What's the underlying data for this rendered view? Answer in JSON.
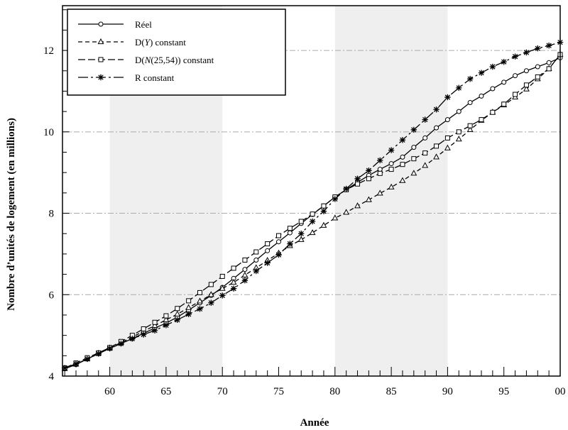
{
  "chart_data": {
    "type": "line",
    "xlabel": "Année",
    "ylabel": "Nombre d’unités de logement (en millions)",
    "xlim": [
      1955.8,
      2000
    ],
    "ylim": [
      4,
      13.1
    ],
    "x_ticks": [
      {
        "value": 1960,
        "label": "60"
      },
      {
        "value": 1965,
        "label": "65"
      },
      {
        "value": 1970,
        "label": "70"
      },
      {
        "value": 1975,
        "label": "75"
      },
      {
        "value": 1980,
        "label": "80"
      },
      {
        "value": 1985,
        "label": "85"
      },
      {
        "value": 1990,
        "label": "90"
      },
      {
        "value": 1995,
        "label": "95"
      },
      {
        "value": 2000,
        "label": "00"
      }
    ],
    "y_ticks": [
      4,
      6,
      8,
      10,
      12
    ],
    "grid": "dash-dot horizontal lines at y ticks",
    "shaded_bands": [
      [
        1960,
        1970
      ],
      [
        1980,
        1990
      ]
    ],
    "legend_position": "top-left",
    "x": [
      1956,
      1957,
      1958,
      1959,
      1960,
      1961,
      1962,
      1963,
      1964,
      1965,
      1966,
      1967,
      1968,
      1969,
      1970,
      1971,
      1972,
      1973,
      1974,
      1975,
      1976,
      1977,
      1978,
      1979,
      1980,
      1981,
      1982,
      1983,
      1984,
      1985,
      1986,
      1987,
      1988,
      1989,
      1990,
      1991,
      1992,
      1993,
      1994,
      1995,
      1996,
      1997,
      1998,
      1999,
      2000
    ],
    "series": [
      {
        "name": "Réel",
        "marker": "circle",
        "dash": "solid",
        "values": [
          4.18,
          4.28,
          4.42,
          4.55,
          4.68,
          4.8,
          4.92,
          5.05,
          5.18,
          5.3,
          5.45,
          5.62,
          5.8,
          5.98,
          6.18,
          6.4,
          6.62,
          6.85,
          7.08,
          7.3,
          7.52,
          7.75,
          7.97,
          8.18,
          8.4,
          8.58,
          8.76,
          8.93,
          9.08,
          9.22,
          9.38,
          9.62,
          9.85,
          10.1,
          10.3,
          10.5,
          10.72,
          10.88,
          11.06,
          11.22,
          11.38,
          11.5,
          11.6,
          11.7,
          11.82
        ]
      },
      {
        "name": "D(Y) constant",
        "name_parts": {
          "pre": "D(",
          "italic": "Y",
          "post": ") constant"
        },
        "marker": "triangle",
        "dash": "6,4",
        "values": [
          4.18,
          4.29,
          4.42,
          4.56,
          4.69,
          4.82,
          4.96,
          5.1,
          5.24,
          5.38,
          5.52,
          5.68,
          5.84,
          6.0,
          6.15,
          6.3,
          6.48,
          6.66,
          6.84,
          7.02,
          7.2,
          7.35,
          7.52,
          7.7,
          7.88,
          8.02,
          8.18,
          8.33,
          8.49,
          8.64,
          8.8,
          8.98,
          9.17,
          9.38,
          9.6,
          9.82,
          10.05,
          10.28,
          10.48,
          10.66,
          10.85,
          11.05,
          11.3,
          11.55,
          11.9
        ]
      },
      {
        "name": "D(N(25,54)) constant",
        "name_parts": {
          "pre": "D(",
          "italic": "N",
          "post": "(25,54)) constant"
        },
        "marker": "square",
        "dash": "10,4",
        "values": [
          4.2,
          4.32,
          4.45,
          4.57,
          4.7,
          4.85,
          5.0,
          5.16,
          5.32,
          5.48,
          5.66,
          5.85,
          6.05,
          6.25,
          6.45,
          6.65,
          6.85,
          7.05,
          7.25,
          7.45,
          7.63,
          7.8,
          7.98,
          8.18,
          8.4,
          8.58,
          8.72,
          8.85,
          8.98,
          9.08,
          9.2,
          9.34,
          9.48,
          9.65,
          9.85,
          10.0,
          10.15,
          10.3,
          10.48,
          10.68,
          10.92,
          11.15,
          11.35,
          11.55,
          11.9
        ]
      },
      {
        "name": "R constant",
        "marker": "star",
        "dash": "14,4,3,4",
        "values": [
          4.2,
          4.3,
          4.42,
          4.55,
          4.68,
          4.8,
          4.92,
          5.02,
          5.12,
          5.25,
          5.38,
          5.52,
          5.65,
          5.8,
          5.98,
          6.15,
          6.35,
          6.58,
          6.78,
          6.98,
          7.25,
          7.5,
          7.8,
          8.05,
          8.35,
          8.6,
          8.85,
          9.05,
          9.3,
          9.55,
          9.8,
          10.05,
          10.3,
          10.55,
          10.85,
          11.08,
          11.3,
          11.45,
          11.6,
          11.72,
          11.85,
          11.95,
          12.05,
          12.12,
          12.2
        ]
      }
    ]
  }
}
